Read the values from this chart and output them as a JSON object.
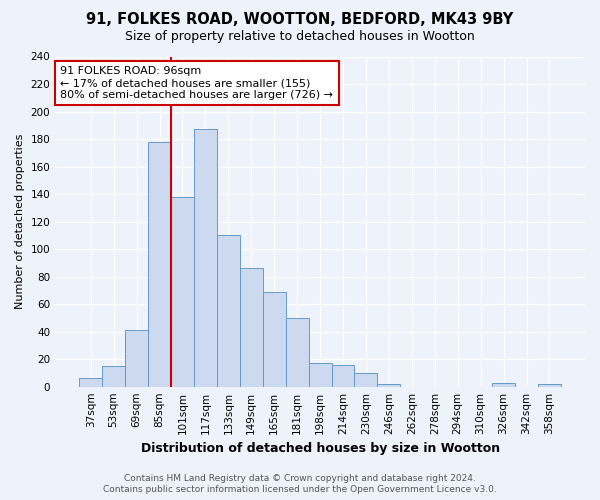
{
  "title1": "91, FOLKES ROAD, WOOTTON, BEDFORD, MK43 9BY",
  "title2": "Size of property relative to detached houses in Wootton",
  "xlabel": "Distribution of detached houses by size in Wootton",
  "ylabel": "Number of detached properties",
  "bar_labels": [
    "37sqm",
    "53sqm",
    "69sqm",
    "85sqm",
    "101sqm",
    "117sqm",
    "133sqm",
    "149sqm",
    "165sqm",
    "181sqm",
    "198sqm",
    "214sqm",
    "230sqm",
    "246sqm",
    "262sqm",
    "278sqm",
    "294sqm",
    "310sqm",
    "326sqm",
    "342sqm",
    "358sqm"
  ],
  "bar_values": [
    6,
    15,
    41,
    178,
    138,
    187,
    110,
    86,
    69,
    50,
    17,
    16,
    10,
    2,
    0,
    0,
    0,
    0,
    3,
    0,
    2
  ],
  "bar_color": "#ccd9ee",
  "bar_edge_color": "#6699cc",
  "vline_color": "#cc0000",
  "annotation_text": "91 FOLKES ROAD: 96sqm\n← 17% of detached houses are smaller (155)\n80% of semi-detached houses are larger (726) →",
  "annotation_box_color": "white",
  "annotation_box_edge": "#cc0000",
  "ylim": [
    0,
    240
  ],
  "yticks": [
    0,
    20,
    40,
    60,
    80,
    100,
    120,
    140,
    160,
    180,
    200,
    220,
    240
  ],
  "footer1": "Contains HM Land Registry data © Crown copyright and database right 2024.",
  "footer2": "Contains public sector information licensed under the Open Government Licence v3.0.",
  "background_color": "#eef2fa",
  "grid_color": "#ffffff",
  "title1_fontsize": 10.5,
  "title2_fontsize": 9,
  "ylabel_fontsize": 8,
  "xlabel_fontsize": 9,
  "tick_fontsize": 7.5,
  "annotation_fontsize": 8,
  "footer_fontsize": 6.5,
  "vline_x_index": 4
}
